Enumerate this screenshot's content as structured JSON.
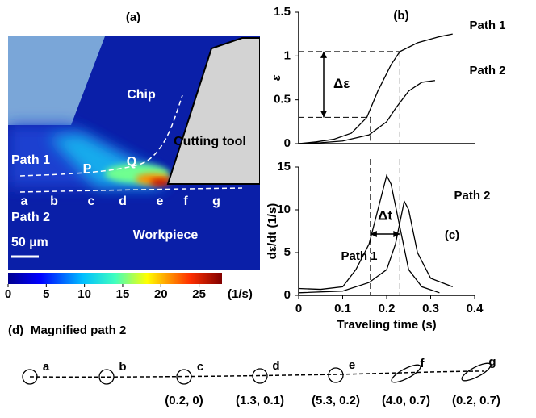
{
  "panel_a": {
    "label": "(a)",
    "chip": "Chip",
    "tool": "Cutting tool",
    "workpiece": "Workpiece",
    "path1": "Path 1",
    "path2": "Path 2",
    "scale_bar": "50 µm",
    "point_p": "P",
    "point_q": "Q",
    "path_points": [
      "a",
      "b",
      "c",
      "d",
      "e",
      "f",
      "g"
    ],
    "colorbar": {
      "lim": [
        0,
        28
      ],
      "ticks": [
        0,
        5,
        10,
        15,
        20,
        25
      ],
      "unit": "(1/s)"
    }
  },
  "chart_data": [
    {
      "type": "line",
      "label": "(b)",
      "ylabel": "ε",
      "xlim": [
        0,
        0.4
      ],
      "ylim": [
        0,
        1.5
      ],
      "yticks": [
        0,
        0.5,
        1,
        1.5
      ],
      "annotation": "Δε",
      "reference_strains": [
        0.3,
        1.05
      ],
      "reference_times": [
        0.163,
        0.23
      ],
      "series": [
        {
          "name": "Path 1",
          "color": "#000000",
          "x": [
            0,
            0.04,
            0.08,
            0.12,
            0.155,
            0.18,
            0.21,
            0.23,
            0.27,
            0.32,
            0.35
          ],
          "values": [
            0,
            0.02,
            0.05,
            0.12,
            0.3,
            0.6,
            0.9,
            1.05,
            1.15,
            1.22,
            1.25
          ]
        },
        {
          "name": "Path 2",
          "color": "#000000",
          "x": [
            0,
            0.05,
            0.1,
            0.16,
            0.2,
            0.22,
            0.25,
            0.28,
            0.31
          ],
          "values": [
            0,
            0.01,
            0.03,
            0.1,
            0.25,
            0.4,
            0.6,
            0.7,
            0.72
          ]
        }
      ]
    },
    {
      "type": "line",
      "label": "(c)",
      "ylabel": "dε/dt (1/s)",
      "xlabel": "Traveling time (s)",
      "xlim": [
        0,
        0.4
      ],
      "xticks": [
        0,
        0.1,
        0.2,
        0.3,
        0.4
      ],
      "ylim": [
        0,
        15
      ],
      "yticks": [
        0,
        5,
        10,
        15
      ],
      "annotation": "Δt",
      "reference_times": [
        0.163,
        0.23
      ],
      "series": [
        {
          "name": "Path 1",
          "color": "#000000",
          "x": [
            0,
            0.05,
            0.1,
            0.13,
            0.16,
            0.18,
            0.2,
            0.21,
            0.23,
            0.25,
            0.28,
            0.32
          ],
          "values": [
            0.8,
            0.7,
            1,
            3,
            6,
            10,
            14,
            13,
            8,
            3,
            1,
            0.3
          ]
        },
        {
          "name": "Path 2",
          "color": "#000000",
          "x": [
            0,
            0.1,
            0.16,
            0.2,
            0.22,
            0.24,
            0.25,
            0.27,
            0.3,
            0.35
          ],
          "values": [
            0.3,
            0.5,
            1.5,
            3,
            6,
            11,
            10,
            5,
            2,
            1
          ]
        }
      ]
    }
  ],
  "panel_d": {
    "label": "(d)",
    "title": "Magnified path 2",
    "points": [
      {
        "name": "a"
      },
      {
        "name": "b"
      },
      {
        "name": "c",
        "coords": "(0.2, 0)"
      },
      {
        "name": "d",
        "coords": "(1.3, 0.1)"
      },
      {
        "name": "e",
        "coords": "(5.3, 0.2)"
      },
      {
        "name": "f",
        "coords": "(4.0, 0.7)"
      },
      {
        "name": "g",
        "coords": "(0.2, 0.7)"
      }
    ]
  }
}
